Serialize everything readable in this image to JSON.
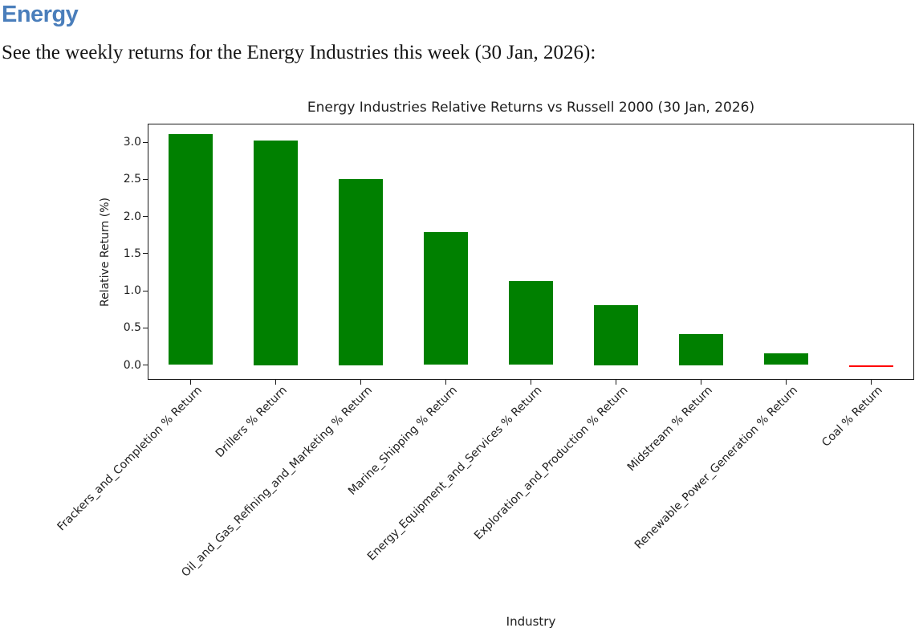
{
  "page": {
    "heading": "Energy",
    "heading_color": "#4a7ebb",
    "intro": "See the weekly returns for the Energy Industries this week (30 Jan, 2026):"
  },
  "chart_data": {
    "type": "bar",
    "title": "Energy Industries Relative Returns vs Russell 2000 (30 Jan, 2026)",
    "xlabel": "Industry",
    "ylabel": "Relative Return (%)",
    "categories": [
      "Frackers_and_Completion % Return",
      "Drillers % Return",
      "Oil_and_Gas_Refining_and_Marketing % Return",
      "Marine_Shipping % Return",
      "Energy_Equipment_and_Services % Return",
      "Exploration_and_Production % Return",
      "Midstream % Return",
      "Renewable_Power_Generation % Return",
      "Coal % Return"
    ],
    "values": [
      3.11,
      3.02,
      2.5,
      1.79,
      1.13,
      0.81,
      0.42,
      0.16,
      -0.03
    ],
    "positive_color": "#008000",
    "negative_color": "#ff0000",
    "yticks": [
      0.0,
      0.5,
      1.0,
      1.5,
      2.0,
      2.5,
      3.0
    ],
    "ylim": [
      -0.2,
      3.25
    ],
    "xtick_rotation_deg": 45,
    "grid": false,
    "legend": false
  }
}
